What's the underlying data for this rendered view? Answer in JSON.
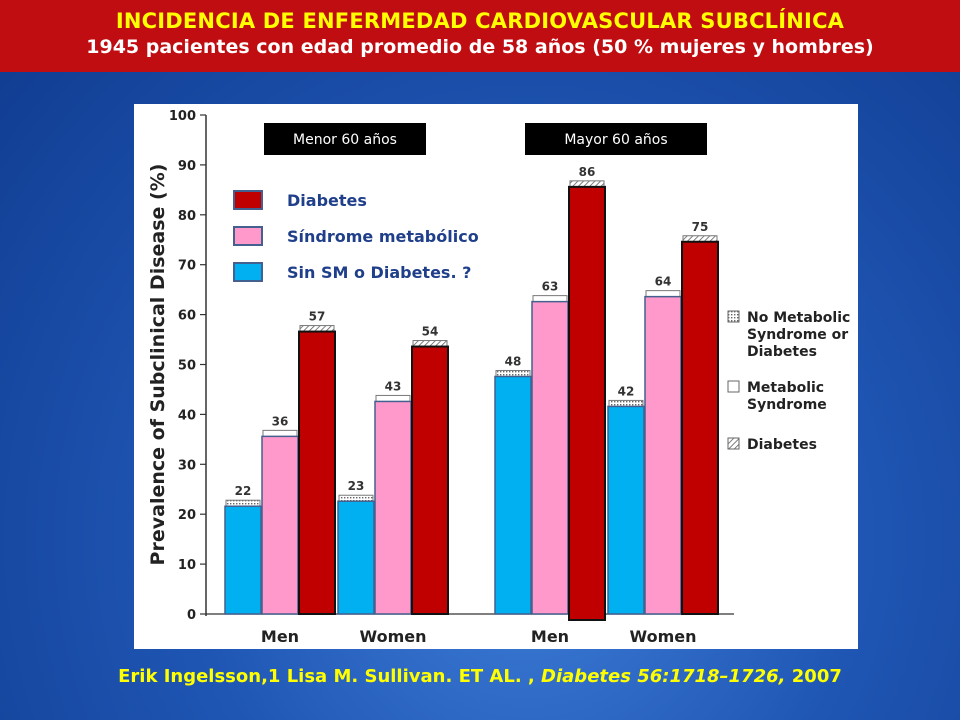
{
  "header": {
    "title": "INCIDENCIA DE ENFERMEDAD CARDIOVASCULAR SUBCLÍNICA",
    "subtitle": "1945 pacientes  con edad promedio de 58 años (50 % mujeres y hombres)",
    "background_color": "#c00d12",
    "title_color": "#ffff00"
  },
  "group_labels": [
    "Menor 60 años",
    "Mayor 60 años"
  ],
  "overlay_legend": [
    {
      "label": "Diabetes",
      "color": "#c00000"
    },
    {
      "label": "Síndrome metabólico",
      "color": "#ff99cc"
    },
    {
      "label": "Sin SM o Diabetes. ?",
      "color": "#00b0f0"
    }
  ],
  "original_legend": [
    {
      "label": "No Metabolic Syndrome or Diabetes",
      "pattern": "dotted"
    },
    {
      "label": "Metabolic Syndrome",
      "pattern": "blank"
    },
    {
      "label": "Diabetes",
      "pattern": "hatched"
    }
  ],
  "chart_data": {
    "type": "bar",
    "categories": [
      "Men",
      "Women",
      "Men",
      "Women"
    ],
    "category_groups": [
      "Menor 60 años",
      "Menor 60 años",
      "Mayor 60 años",
      "Mayor 60 años"
    ],
    "series": [
      {
        "name": "Sin SM o Diabetes. ?",
        "color": "#00b0f0",
        "values": [
          22,
          23,
          48,
          42
        ]
      },
      {
        "name": "Síndrome metabólico",
        "color": "#ff99cc",
        "values": [
          36,
          43,
          63,
          64
        ]
      },
      {
        "name": "Diabetes",
        "color": "#c00000",
        "values": [
          57,
          54,
          86,
          75
        ]
      }
    ],
    "ylabel": "Prevalence of Subclinical Disease (%)",
    "xlabel": "",
    "ylim": [
      0,
      100
    ],
    "yticks": [
      0,
      10,
      20,
      30,
      40,
      50,
      60,
      70,
      80,
      90,
      100
    ],
    "legend_position": "top-left"
  },
  "citation": {
    "authors": "Erik Ingelsson,1 Lisa M. Sullivan. ET AL. ,",
    "journal": "Diabetes 56:1718–1726,",
    "year": " 2007"
  }
}
